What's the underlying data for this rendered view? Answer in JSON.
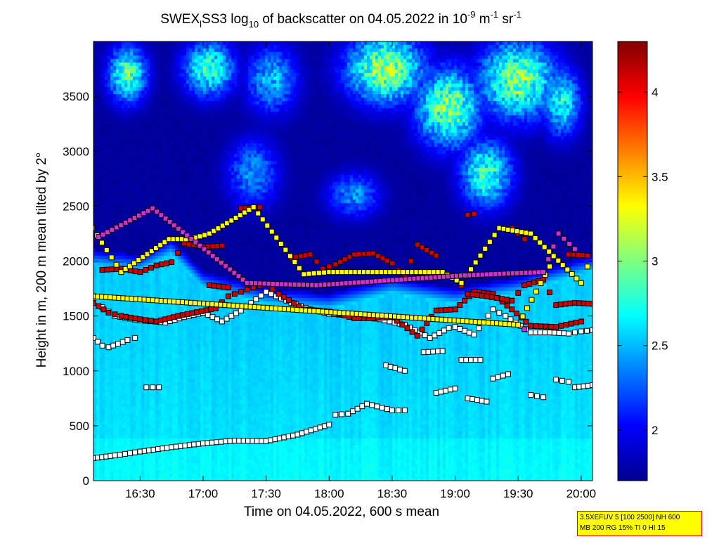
{
  "colors": {
    "background": "#ffffff",
    "info_box_fill": "#ffff00",
    "info_box_border": "#ff0000",
    "marker_outline": "#000000"
  },
  "chart_data": {
    "type": "heatmap",
    "title": {
      "prefix": "SWEX",
      "sub_1": "l",
      "middle": "SS3 log",
      "sub_2": "10",
      "after": " of backscatter on 04.05.2022 in 10",
      "sup_1": "-9",
      "unit_m": " m",
      "sup_2": "-1",
      "unit_sr": " sr",
      "sup_3": "-1"
    },
    "xlabel": "Time on 04.05.2022, 600 s mean",
    "ylabel": "Height in m, 200 m mean tilted by 2°",
    "x_unit": "hours",
    "xlim": [
      16.13,
      20.09
    ],
    "ylim": [
      0,
      4000
    ],
    "x_ticks": [
      {
        "value": 16.5,
        "label": "16:30"
      },
      {
        "value": 17.0,
        "label": "17:00"
      },
      {
        "value": 17.5,
        "label": "17:30"
      },
      {
        "value": 18.0,
        "label": "18:00"
      },
      {
        "value": 18.5,
        "label": "18:30"
      },
      {
        "value": 19.0,
        "label": "19:00"
      },
      {
        "value": 19.5,
        "label": "19:30"
      },
      {
        "value": 20.0,
        "label": "20:00"
      }
    ],
    "y_ticks": [
      {
        "value": 0,
        "label": "0"
      },
      {
        "value": 500,
        "label": "500"
      },
      {
        "value": 1000,
        "label": "1000"
      },
      {
        "value": 1500,
        "label": "1500"
      },
      {
        "value": 2000,
        "label": "2000"
      },
      {
        "value": 2500,
        "label": "2500"
      },
      {
        "value": 3000,
        "label": "3000"
      },
      {
        "value": 3500,
        "label": "3500"
      }
    ],
    "colorbar": {
      "colormap": "jet",
      "clim": [
        1.7,
        4.3
      ],
      "ticks": [
        {
          "value": 2,
          "label": "2"
        },
        {
          "value": 2.5,
          "label": "2.5"
        },
        {
          "value": 3,
          "label": "3"
        },
        {
          "value": 3.5,
          "label": "3.5"
        },
        {
          "value": 4,
          "label": "4"
        }
      ]
    },
    "field_description": {
      "boundary_layer_top_m": [
        [
          16.13,
          1950
        ],
        [
          16.5,
          1900
        ],
        [
          16.75,
          2050
        ],
        [
          17.0,
          1750
        ],
        [
          17.5,
          1600
        ],
        [
          18.0,
          1550
        ],
        [
          18.5,
          1700
        ],
        [
          19.0,
          1600
        ],
        [
          19.5,
          1700
        ],
        [
          20.09,
          1900
        ]
      ],
      "boundary_layer_value": 2.62,
      "free_troposphere_value": 1.75,
      "cloud_patches": [
        {
          "x": 16.4,
          "y": 3700,
          "sx": 0.15,
          "sy": 250,
          "v": 2.9
        },
        {
          "x": 17.05,
          "y": 3750,
          "sx": 0.2,
          "sy": 250,
          "v": 2.8
        },
        {
          "x": 17.55,
          "y": 3650,
          "sx": 0.2,
          "sy": 300,
          "v": 2.5
        },
        {
          "x": 18.45,
          "y": 3750,
          "sx": 0.3,
          "sy": 300,
          "v": 3.1
        },
        {
          "x": 18.95,
          "y": 3400,
          "sx": 0.25,
          "sy": 350,
          "v": 3.0
        },
        {
          "x": 19.5,
          "y": 3650,
          "sx": 0.3,
          "sy": 350,
          "v": 3.0
        },
        {
          "x": 19.85,
          "y": 3450,
          "sx": 0.15,
          "sy": 300,
          "v": 2.7
        },
        {
          "x": 17.4,
          "y": 2800,
          "sx": 0.2,
          "sy": 300,
          "v": 2.4
        },
        {
          "x": 19.25,
          "y": 2800,
          "sx": 0.2,
          "sy": 300,
          "v": 2.8
        },
        {
          "x": 18.2,
          "y": 2600,
          "sx": 0.2,
          "sy": 200,
          "v": 2.4
        }
      ]
    },
    "markers": {
      "size": 7,
      "series": [
        {
          "color": "#ffffff",
          "points": [
            [
              16.13,
              205
            ],
            [
              16.3,
              230
            ],
            [
              16.5,
              265
            ],
            [
              16.75,
              305
            ],
            [
              17.0,
              340
            ],
            [
              17.25,
              365
            ],
            [
              17.5,
              360
            ],
            [
              17.75,
              420
            ],
            [
              18.0,
              510
            ],
            [
              18.05,
              600
            ],
            [
              18.15,
              610
            ],
            [
              18.3,
              700
            ],
            [
              18.5,
              640
            ],
            [
              18.6,
              640
            ]
          ]
        },
        {
          "color": "#ffffff",
          "points": [
            [
              16.13,
              1300
            ],
            [
              16.2,
              1230
            ],
            [
              16.25,
              1215
            ],
            [
              16.4,
              1280
            ],
            [
              16.46,
              1300
            ]
          ]
        },
        {
          "color": "#ffffff",
          "points": [
            [
              16.2,
              1580
            ],
            [
              16.3,
              1500
            ],
            [
              16.5,
              1460
            ],
            [
              16.7,
              1440
            ],
            [
              16.85,
              1490
            ],
            [
              17.0,
              1530
            ],
            [
              17.15,
              1450
            ],
            [
              17.3,
              1550
            ],
            [
              17.5,
              1720
            ],
            [
              17.7,
              1620
            ],
            [
              17.85,
              1560
            ],
            [
              18.0,
              1520
            ],
            [
              18.2,
              1500
            ],
            [
              18.4,
              1470
            ],
            [
              18.6,
              1420
            ],
            [
              18.8,
              1300
            ],
            [
              18.95,
              1390
            ],
            [
              19.0,
              1400
            ],
            [
              19.15,
              1330
            ],
            [
              19.3,
              1560
            ],
            [
              19.4,
              1500
            ],
            [
              19.6,
              1350
            ],
            [
              19.75,
              1350
            ],
            [
              19.9,
              1340
            ],
            [
              20.0,
              1360
            ],
            [
              20.09,
              1370
            ]
          ]
        },
        {
          "color": "#ffffff",
          "points": [
            [
              16.55,
              850
            ],
            [
              16.65,
              850
            ]
          ]
        },
        {
          "color": "#ffffff",
          "points": [
            [
              18.45,
              1050
            ],
            [
              18.6,
              1000
            ]
          ]
        },
        {
          "color": "#ffffff",
          "points": [
            [
              18.85,
              800
            ],
            [
              19.0,
              840
            ]
          ]
        },
        {
          "color": "#ffffff",
          "points": [
            [
              19.05,
              1100
            ],
            [
              19.2,
              1100
            ]
          ]
        },
        {
          "color": "#ffffff",
          "points": [
            [
              19.1,
              750
            ],
            [
              19.25,
              720
            ]
          ]
        },
        {
          "color": "#ffffff",
          "points": [
            [
              19.3,
              930
            ],
            [
              19.42,
              970
            ]
          ]
        },
        {
          "color": "#ffffff",
          "points": [
            [
              19.6,
              780
            ],
            [
              19.7,
              760
            ]
          ]
        },
        {
          "color": "#ffffff",
          "points": [
            [
              19.8,
              920
            ],
            [
              19.9,
              900
            ]
          ]
        },
        {
          "color": "#ffffff",
          "points": [
            [
              19.95,
              850
            ],
            [
              20.09,
              870
            ]
          ]
        },
        {
          "color": "#ffffff",
          "points": [
            [
              18.75,
              1170
            ],
            [
              18.9,
              1180
            ]
          ]
        },
        {
          "color": "#cc0000",
          "points": [
            [
              16.13,
              1620
            ],
            [
              16.25,
              1530
            ],
            [
              16.35,
              1500
            ],
            [
              16.5,
              1470
            ],
            [
              16.63,
              1450
            ],
            [
              16.8,
              1500
            ],
            [
              17.1,
              1570
            ],
            [
              17.2,
              1680
            ],
            [
              17.3,
              1720
            ],
            [
              17.4,
              1760
            ],
            [
              17.5,
              1790
            ],
            [
              17.6,
              1700
            ],
            [
              17.8,
              1560
            ],
            [
              18.0,
              1540
            ],
            [
              18.2,
              1480
            ],
            [
              18.35,
              1480
            ],
            [
              18.5,
              1490
            ],
            [
              18.7,
              1320
            ],
            [
              18.85,
              1550
            ],
            [
              19.0,
              1560
            ],
            [
              19.15,
              1720
            ],
            [
              19.3,
              1700
            ],
            [
              19.45,
              1560
            ],
            [
              19.6,
              1410
            ],
            [
              19.8,
              1400
            ],
            [
              20.0,
              1450
            ]
          ]
        },
        {
          "color": "#cc0000",
          "points": [
            [
              16.2,
              1920
            ],
            [
              16.35,
              1930
            ],
            [
              16.5,
              1900
            ],
            [
              16.63,
              1960
            ],
            [
              16.75,
              1990
            ],
            [
              16.85,
              2160
            ],
            [
              17.0,
              2130
            ],
            [
              17.15,
              2140
            ]
          ]
        },
        {
          "color": "#cc0000",
          "points": [
            [
              17.3,
              2480
            ],
            [
              17.45,
              2490
            ]
          ]
        },
        {
          "color": "#cc0000",
          "points": [
            [
              17.7,
              2030
            ],
            [
              17.85,
              2060
            ],
            [
              17.95,
              1930
            ],
            [
              18.05,
              1970
            ],
            [
              18.2,
              2060
            ],
            [
              18.35,
              2070
            ],
            [
              18.5,
              1980
            ],
            [
              18.6,
              1850
            ],
            [
              18.7,
              2150
            ],
            [
              18.85,
              2050
            ],
            [
              18.9,
              1900
            ],
            [
              19.0,
              1850
            ],
            [
              19.1,
              1700
            ],
            [
              19.25,
              1680
            ],
            [
              19.45,
              1640
            ],
            [
              19.55,
              1780
            ],
            [
              19.7,
              1830
            ],
            [
              19.8,
              1600
            ],
            [
              19.95,
              1620
            ],
            [
              20.09,
              1610
            ]
          ]
        },
        {
          "color": "#cc0000",
          "points": [
            [
              19.1,
              2420
            ],
            [
              19.15,
              2430
            ]
          ]
        },
        {
          "color": "#cc0000",
          "points": [
            [
              19.45,
              2300
            ],
            [
              19.55,
              2200
            ]
          ]
        },
        {
          "color": "#cc0000",
          "points": [
            [
              19.9,
              2060
            ],
            [
              20.05,
              2050
            ]
          ]
        },
        {
          "color": "#cc0000",
          "points": [
            [
              17.05,
              1780
            ],
            [
              17.2,
              1760
            ]
          ]
        },
        {
          "color": "#ffff00",
          "points": [
            [
              16.12,
              2300
            ],
            [
              16.35,
              1900
            ],
            [
              16.73,
              2200
            ],
            [
              16.9,
              2200
            ],
            [
              17.05,
              2250
            ],
            [
              17.4,
              2490
            ],
            [
              17.8,
              1880
            ],
            [
              18.0,
              1900
            ],
            [
              18.9,
              1900
            ],
            [
              19.05,
              1800
            ],
            [
              19.35,
              2300
            ],
            [
              19.6,
              2250
            ],
            [
              20.0,
              1800
            ],
            [
              20.05,
              1950
            ],
            [
              16.13,
              1680
            ],
            [
              19.5,
              1420
            ],
            [
              19.75,
              1950
            ]
          ]
        },
        {
          "color": "#cc33cc",
          "points": [
            [
              16.17,
              2220
            ],
            [
              16.6,
              2480
            ],
            [
              17.35,
              1800
            ],
            [
              17.9,
              1780
            ],
            [
              19.08,
              1870
            ],
            [
              19.7,
              1900
            ],
            [
              19.82,
              2250
            ],
            [
              19.95,
              2110
            ],
            [
              19.55,
              1380
            ]
          ]
        }
      ]
    }
  },
  "info_box": {
    "line1": "3.5XEFUV 5 [100 2500] NH 600",
    "line2": "MB 200 RG 15% TI 0 HI 15"
  }
}
